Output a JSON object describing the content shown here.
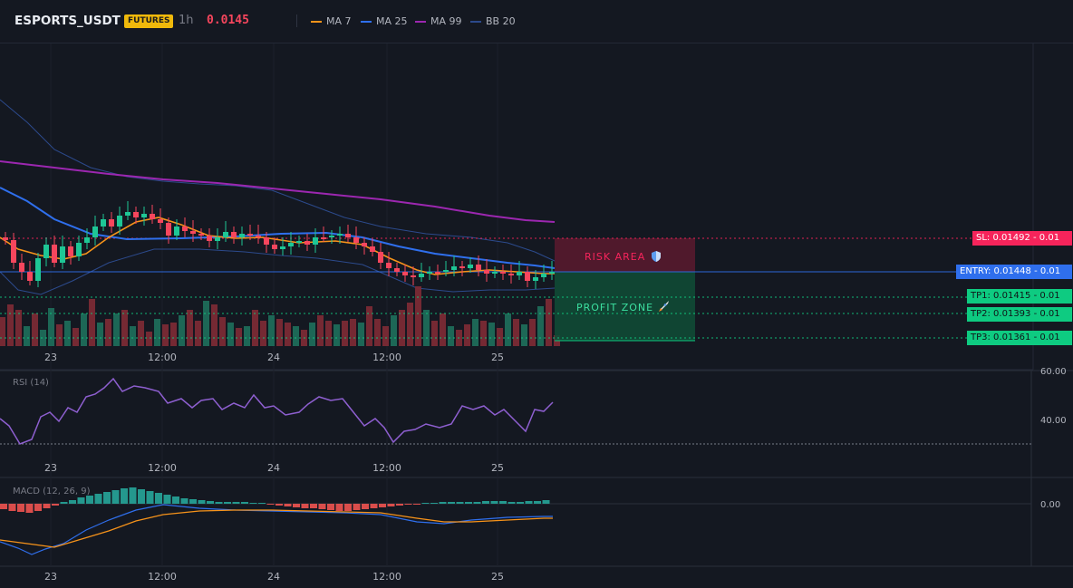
{
  "header": {
    "symbol": "ESPORTS_USDT",
    "badge": "FUTURES",
    "timeframe": "1h",
    "price": "0.0145",
    "legend": [
      {
        "label": "MA 7",
        "color": "#f7931a",
        "icon": "line-swatch"
      },
      {
        "label": "MA 25",
        "color": "#2f6fed",
        "icon": "line-swatch"
      },
      {
        "label": "MA 99",
        "color": "#9c27b0",
        "icon": "line-swatch"
      },
      {
        "label": "BB 20",
        "color": "#2c4a8c",
        "icon": "line-swatch"
      }
    ]
  },
  "zones": {
    "risk_label": "RISK AREA",
    "risk_icon": "shield-icon",
    "profit_label": "PROFIT ZONE",
    "profit_icon": "rocket-icon"
  },
  "levels": [
    {
      "name": "SL",
      "label": "SL: 0.01492",
      "qty": "0.01",
      "value": 0.01492,
      "color": "#f6245b"
    },
    {
      "name": "ENTRY",
      "label": "ENTRY: 0.01448",
      "qty": "0.01",
      "value": 0.01448,
      "color": "#2f6fed"
    },
    {
      "name": "TP1",
      "label": "TP1: 0.01415",
      "qty": "0.01",
      "value": 0.01415,
      "color": "#0ecb81"
    },
    {
      "name": "TP2",
      "label": "TP2: 0.01393",
      "qty": "0.01",
      "value": 0.01393,
      "color": "#0ecb81"
    },
    {
      "name": "TP3",
      "label": "TP3: 0.01361",
      "qty": "0.01",
      "value": 0.01361,
      "color": "#0ecb81"
    }
  ],
  "time_axis": [
    "23",
    "12:00",
    "24",
    "12:00",
    "25"
  ],
  "rsi": {
    "label": "RSI (14)",
    "ticks": [
      "60.00",
      "40.00"
    ],
    "color": "#8e5fd0"
  },
  "macd": {
    "label": "MACD (12, 26, 9)",
    "ticks": [
      "0.00"
    ]
  },
  "colors": {
    "up": "#1ec695",
    "down": "#f6465d",
    "background": "#141821",
    "grid": "#1f2430"
  }
}
